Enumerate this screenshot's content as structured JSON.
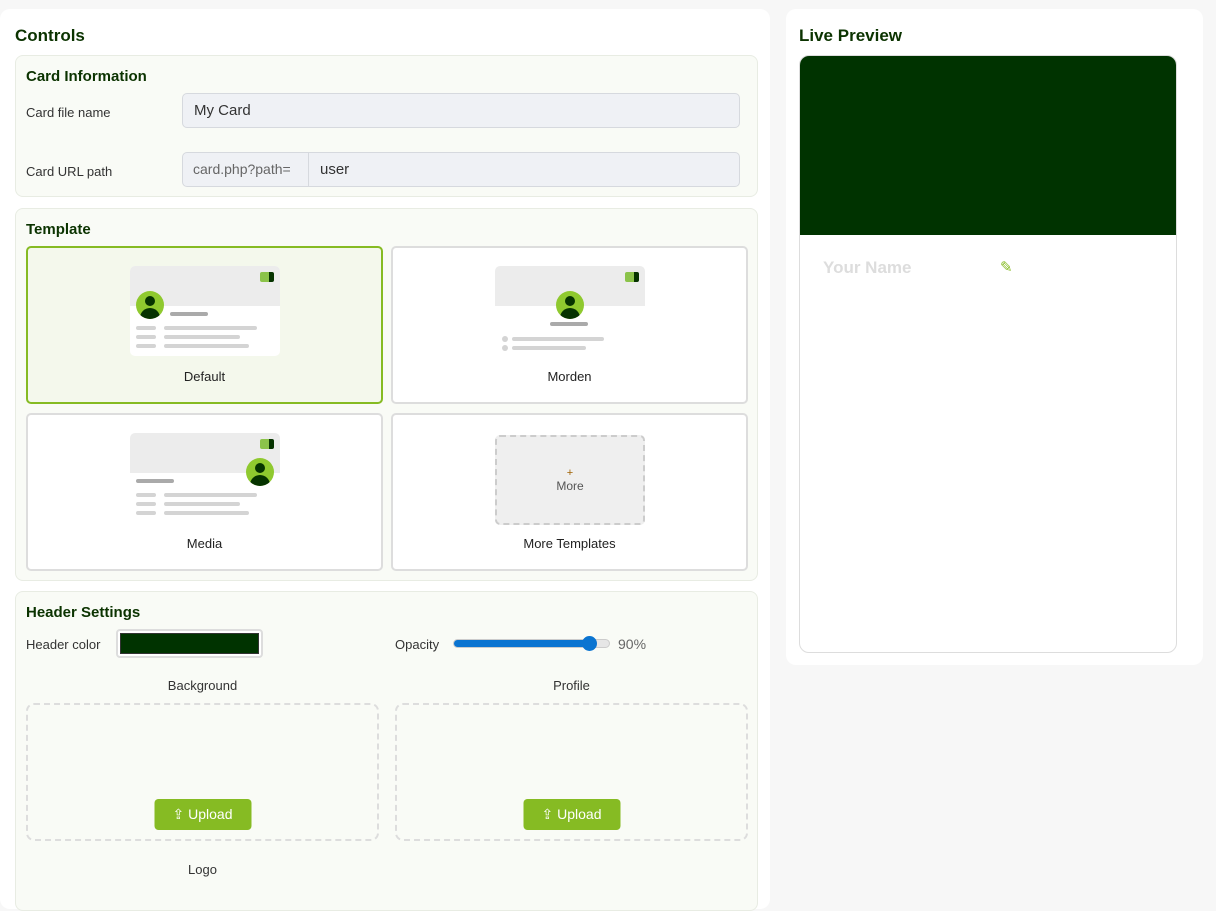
{
  "controls": {
    "title": "Controls"
  },
  "card_info": {
    "title": "Card Information",
    "file_label": "Card file name",
    "file_value": "My Card",
    "url_label": "Card URL path",
    "url_prefix": "card.php?path=",
    "url_value": "user"
  },
  "template": {
    "title": "Template",
    "items": [
      {
        "label": "Default",
        "selected": true
      },
      {
        "label": "Morden",
        "selected": false
      },
      {
        "label": "Media",
        "selected": false
      },
      {
        "label": "More Templates",
        "selected": false
      }
    ],
    "more_plus": "+",
    "more_text": "More"
  },
  "header_settings": {
    "title": "Header Settings",
    "color_label": "Header color",
    "color_value": "#003300",
    "opacity_label": "Opacity",
    "opacity_value": 90,
    "opacity_text": "90%",
    "background_label": "Background",
    "profile_label": "Profile",
    "upload_label": "Upload",
    "logo_label": "Logo"
  },
  "preview": {
    "title": "Live Preview",
    "name_placeholder": "Your Name",
    "header_color": "#003300"
  },
  "colors": {
    "accent": "#86bb23",
    "heading": "#0b3300",
    "slider": "#0a74d1"
  }
}
